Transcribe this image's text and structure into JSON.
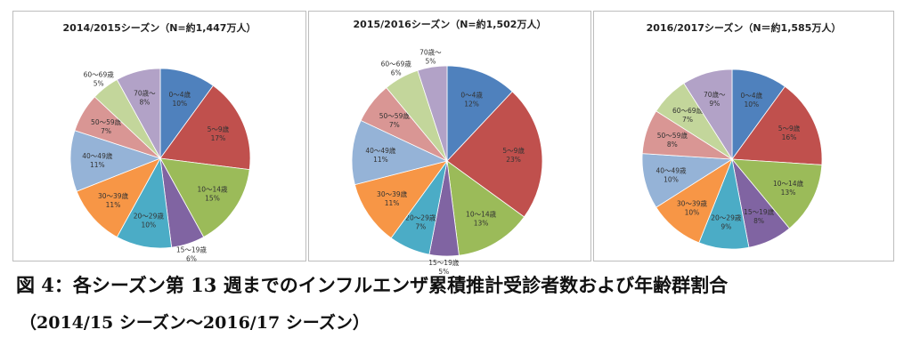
{
  "caption": {
    "line1": "図 4：各シーズン第 13 週までのインフルエンザ累積推計受診者数および年齢群割合",
    "line2": "（2014/15 シーズン〜2016/17 シーズン）"
  },
  "colors": [
    "#4f81bd",
    "#c0504d",
    "#9bbb59",
    "#8064a2",
    "#4bacc6",
    "#f79646",
    "#95b3d7",
    "#d99694",
    "#c3d69b",
    "#b2a2c7"
  ],
  "chart_data": [
    {
      "type": "pie",
      "title": "2014/2015シーズン（N=約1,447万人）",
      "categories": [
        "0～4歳",
        "5～9歳",
        "10～14歳",
        "15～19歳",
        "20～29歳",
        "30～39歳",
        "40～49歳",
        "50～59歳",
        "60～69歳",
        "70歳～"
      ],
      "values": [
        10,
        17,
        15,
        6,
        10,
        11,
        11,
        7,
        5,
        8
      ],
      "labels": [
        "10%",
        "17%",
        "15%",
        "6%",
        "10%",
        "11%",
        "11%",
        "7%",
        "5%",
        "8%"
      ]
    },
    {
      "type": "pie",
      "title": "2015/2016シーズン（N=約1,502万人）",
      "categories": [
        "0～4歳",
        "5～9歳",
        "10～14歳",
        "15～19歳",
        "20～29歳",
        "30～39歳",
        "40～49歳",
        "50～59歳",
        "60～69歳",
        "70歳～"
      ],
      "values": [
        12,
        23,
        13,
        5,
        7,
        11,
        11,
        7,
        6,
        5
      ],
      "labels": [
        "12%",
        "23%",
        "13%",
        "5%",
        "7%",
        "11%",
        "11%",
        "7%",
        "6%",
        "5%"
      ]
    },
    {
      "type": "pie",
      "title": "2016/2017シーズン（N＝約1,585万人）",
      "categories": [
        "0～4歳",
        "5～9歳",
        "10～14歳",
        "15～19歳",
        "20～29歳",
        "30～39歳",
        "40～49歳",
        "50～59歳",
        "60～69歳",
        "70歳～"
      ],
      "values": [
        10,
        16,
        13,
        8,
        9,
        10,
        10,
        8,
        7,
        9
      ],
      "labels": [
        "10%",
        "16%",
        "13%",
        "8%",
        "9%",
        "10%",
        "10%",
        "8%",
        "7%",
        "9%"
      ]
    }
  ]
}
